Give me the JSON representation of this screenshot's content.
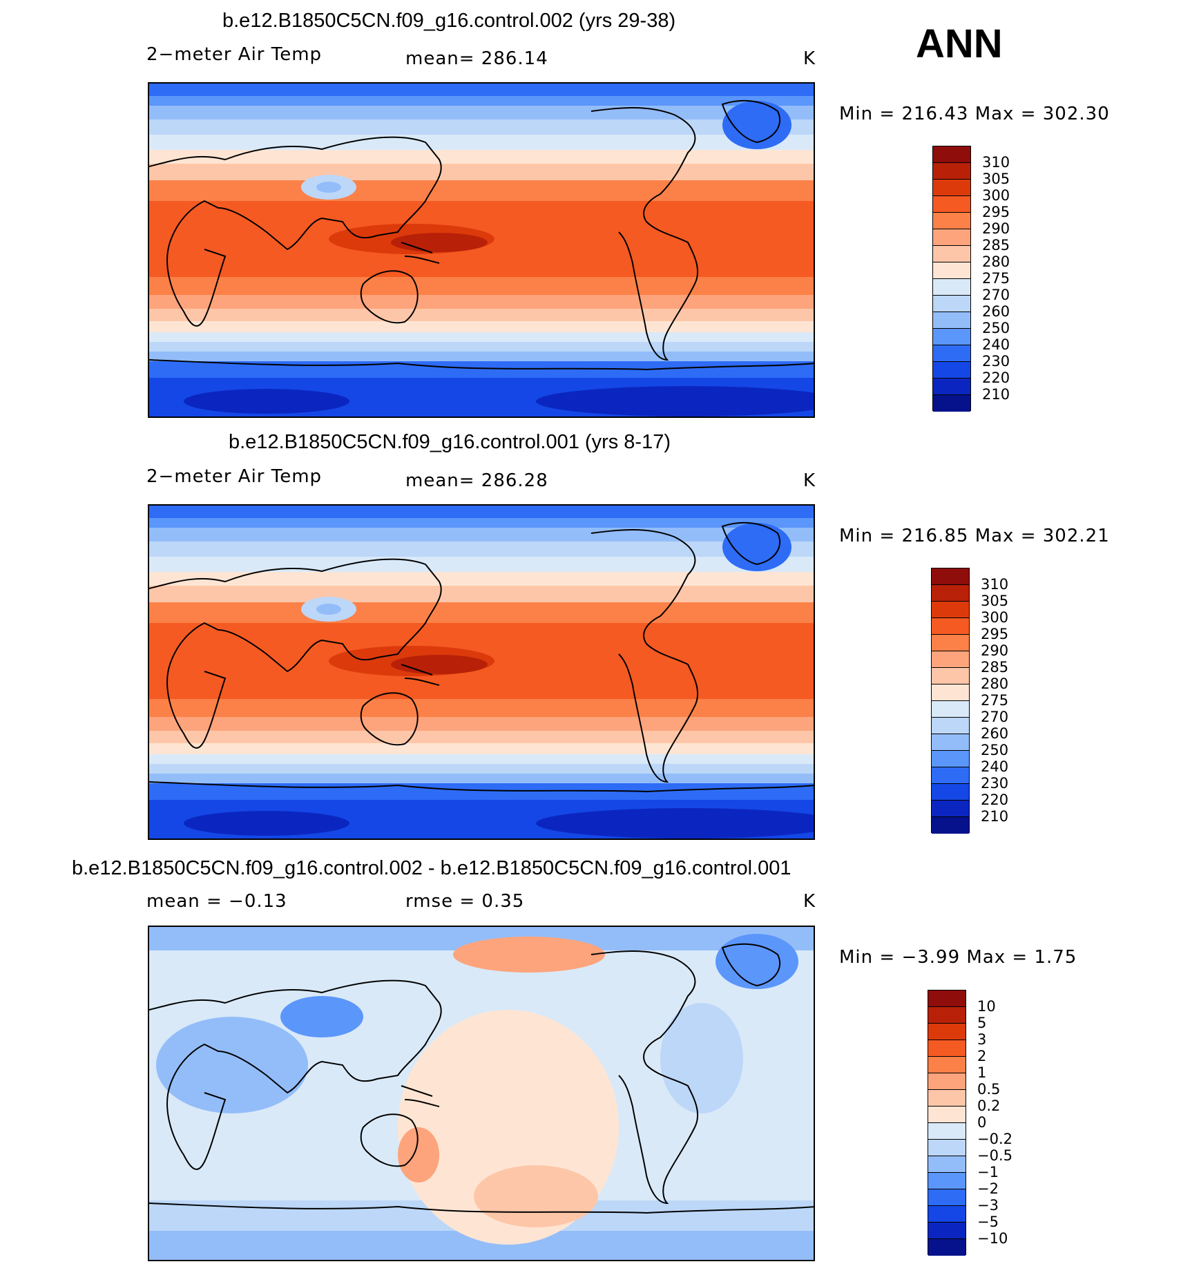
{
  "season": "ANN",
  "panels": [
    {
      "title": "b.e12.B1850C5CN.f09_g16.control.002 (yrs 29-38)",
      "left_label": "2−meter Air Temp",
      "center_label": "mean=  286.14",
      "units": "K",
      "minmax": "Min  =  216.43  Max  =  302.30",
      "map_kind": "temp",
      "colorbar": {
        "labels": [
          "310",
          "305",
          "300",
          "295",
          "290",
          "285",
          "280",
          "275",
          "270",
          "260",
          "250",
          "240",
          "230",
          "220",
          "210"
        ],
        "colors": [
          "#8f0d0b",
          "#b82108",
          "#dd3a0c",
          "#f55a22",
          "#fb8148",
          "#fda47c",
          "#fec6a8",
          "#fee5d3",
          "#d9e9f8",
          "#bcd7f8",
          "#93bdf9",
          "#5b96fa",
          "#2e6cf6",
          "#1447e6",
          "#0b26c0",
          "#05128c"
        ]
      }
    },
    {
      "title": "b.e12.B1850C5CN.f09_g16.control.001 (yrs 8-17)",
      "left_label": "2−meter Air Temp",
      "center_label": "mean=  286.28",
      "units": "K",
      "minmax": "Min  =  216.85  Max  =  302.21",
      "map_kind": "temp",
      "colorbar": {
        "labels": [
          "310",
          "305",
          "300",
          "295",
          "290",
          "285",
          "280",
          "275",
          "270",
          "260",
          "250",
          "240",
          "230",
          "220",
          "210"
        ],
        "colors": [
          "#8f0d0b",
          "#b82108",
          "#dd3a0c",
          "#f55a22",
          "#fb8148",
          "#fda47c",
          "#fec6a8",
          "#fee5d3",
          "#d9e9f8",
          "#bcd7f8",
          "#93bdf9",
          "#5b96fa",
          "#2e6cf6",
          "#1447e6",
          "#0b26c0",
          "#05128c"
        ]
      }
    },
    {
      "title": "b.e12.B1850C5CN.f09_g16.control.002 - b.e12.B1850C5CN.f09_g16.control.001",
      "left_label": "mean  =    −0.13",
      "center_label": "rmse  =      0.35",
      "units": "K",
      "minmax": "Min  =     −3.99  Max  =     1.75",
      "map_kind": "diff",
      "colorbar": {
        "labels": [
          "10",
          "5",
          "3",
          "2",
          "1",
          "0.5",
          "0.2",
          "0",
          "−0.2",
          "−0.5",
          "−1",
          "−2",
          "−3",
          "−5",
          "−10"
        ],
        "colors": [
          "#8f0d0b",
          "#b82108",
          "#dd3a0c",
          "#f55a22",
          "#fb8148",
          "#fda47c",
          "#fec6a8",
          "#fee5d3",
          "#d9e9f8",
          "#bcd7f8",
          "#93bdf9",
          "#5b96fa",
          "#2e6cf6",
          "#1447e6",
          "#0b26c0",
          "#05128c"
        ]
      }
    }
  ]
}
